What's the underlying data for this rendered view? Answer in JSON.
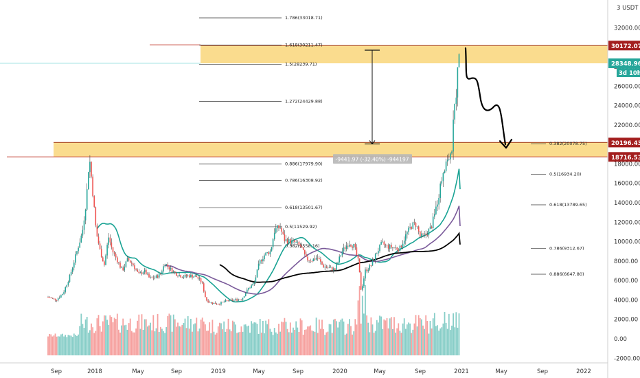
{
  "chart_data": {
    "type": "candlestick",
    "currency_label": "USDT",
    "y_ticks": [
      "32000.00",
      "30000.00",
      "28000.00",
      "26000.00",
      "24000.00",
      "22000.00",
      "20000.00",
      "18000.00",
      "16000.00",
      "14000.00",
      "12000.00",
      "10000.00",
      "8000.00",
      "6000.00",
      "4000.00",
      "2000.00",
      "0.00",
      "-2000.00"
    ],
    "x_ticks": [
      "Sep",
      "2018",
      "May",
      "Sep",
      "2019",
      "May",
      "Sep",
      "2020",
      "May",
      "Sep",
      "2021",
      "May",
      "Sep",
      "2022"
    ],
    "price_tags": [
      {
        "label": "30172.07",
        "value": 30172.07,
        "color": "#a31f1f"
      },
      {
        "label": "28348.96",
        "value": 28348.96,
        "color": "#26a69a"
      },
      {
        "label": "20196.43",
        "value": 20196.43,
        "color": "#a31f1f"
      },
      {
        "label": "18716.53",
        "value": 18716.53,
        "color": "#a31f1f"
      }
    ],
    "countdown": "3d 10h",
    "fib_upper": [
      {
        "label": "1.786(33018.71)",
        "value": 33018.71
      },
      {
        "label": "1.618(30211.47)",
        "value": 30211.47
      },
      {
        "label": "1.5(28239.71)",
        "value": 28239.71
      },
      {
        "label": "1.272(24429.88)",
        "value": 24429.88
      },
      {
        "label": "0.886(17979.90)",
        "value": 17979.9
      },
      {
        "label": "0.786(16308.92)",
        "value": 16308.92
      },
      {
        "label": "0.618(13501.67)",
        "value": 13501.67
      },
      {
        "label": "0.5(11529.92)",
        "value": 11529.92
      },
      {
        "label": "0.382(9558.16)",
        "value": 9558.16
      }
    ],
    "fib_right": [
      {
        "label": "0.382(20078.75)",
        "value": 20078.75
      },
      {
        "label": "0.5(16934.20)",
        "value": 16934.2
      },
      {
        "label": "0.618(13789.65)",
        "value": 13789.65
      },
      {
        "label": "0.786(9312.67)",
        "value": 9312.67
      },
      {
        "label": "0.886(6647.80)",
        "value": 6647.8
      }
    ],
    "measure_label": "-9441.97 (-32.40%) -944197",
    "zones": [
      {
        "from": 28348.96,
        "to": 30172.07
      },
      {
        "from": 18716.53,
        "to": 20196.43
      }
    ],
    "colors": {
      "up": "#26a69a",
      "down": "#ef5350",
      "wick": "#444444",
      "teal_ma": "#1aa394",
      "purple_ma": "#7a5a9a",
      "black_ma": "#000000",
      "zone": "#f9d67a"
    }
  }
}
